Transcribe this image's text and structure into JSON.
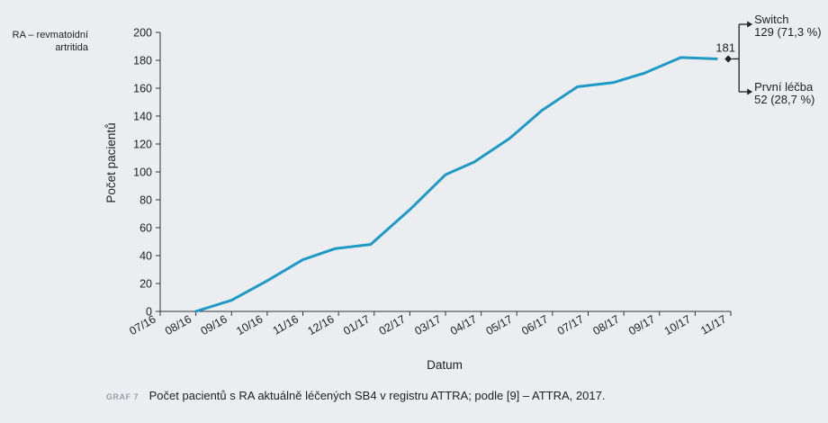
{
  "side_note": {
    "line1": "RA – revmatoidní",
    "line2": "artritida"
  },
  "caption": {
    "label": "GRAF 7",
    "text": "Počet pacientů s RA aktuálně léčených SB4 v registru ATTRA; podle [9] – ATTRA, 2017."
  },
  "chart_data": {
    "type": "line",
    "xlabel": "Datum",
    "ylabel": "Počet pacientů",
    "ylim": [
      0,
      200
    ],
    "yticks": [
      0,
      20,
      40,
      60,
      80,
      100,
      120,
      140,
      160,
      180,
      200
    ],
    "categories": [
      "07/16",
      "08/16",
      "09/16",
      "10/16",
      "11/16",
      "12/16",
      "01/17",
      "02/17",
      "03/17",
      "04/17",
      "05/17",
      "06/17",
      "07/17",
      "08/17",
      "09/17",
      "10/17",
      "11/17"
    ],
    "series": [
      {
        "points": [
          [
            1.0,
            0
          ],
          [
            2.0,
            8
          ],
          [
            3.0,
            22
          ],
          [
            4.0,
            37
          ],
          [
            4.9,
            45
          ],
          [
            5.9,
            48
          ],
          [
            7.0,
            73
          ],
          [
            8.0,
            98
          ],
          [
            8.8,
            107
          ],
          [
            9.8,
            124
          ],
          [
            10.7,
            144
          ],
          [
            11.7,
            161
          ],
          [
            12.7,
            164
          ],
          [
            13.6,
            171
          ],
          [
            14.6,
            182
          ],
          [
            15.6,
            181
          ]
        ],
        "color": "#1f9ac7"
      }
    ],
    "annotations": {
      "end_value": "181",
      "switch_label": "Switch",
      "switch_value": "129 (71,3 %)",
      "first_label": "První léčba",
      "first_value": "52 (28,7 %)"
    },
    "grid": false
  }
}
